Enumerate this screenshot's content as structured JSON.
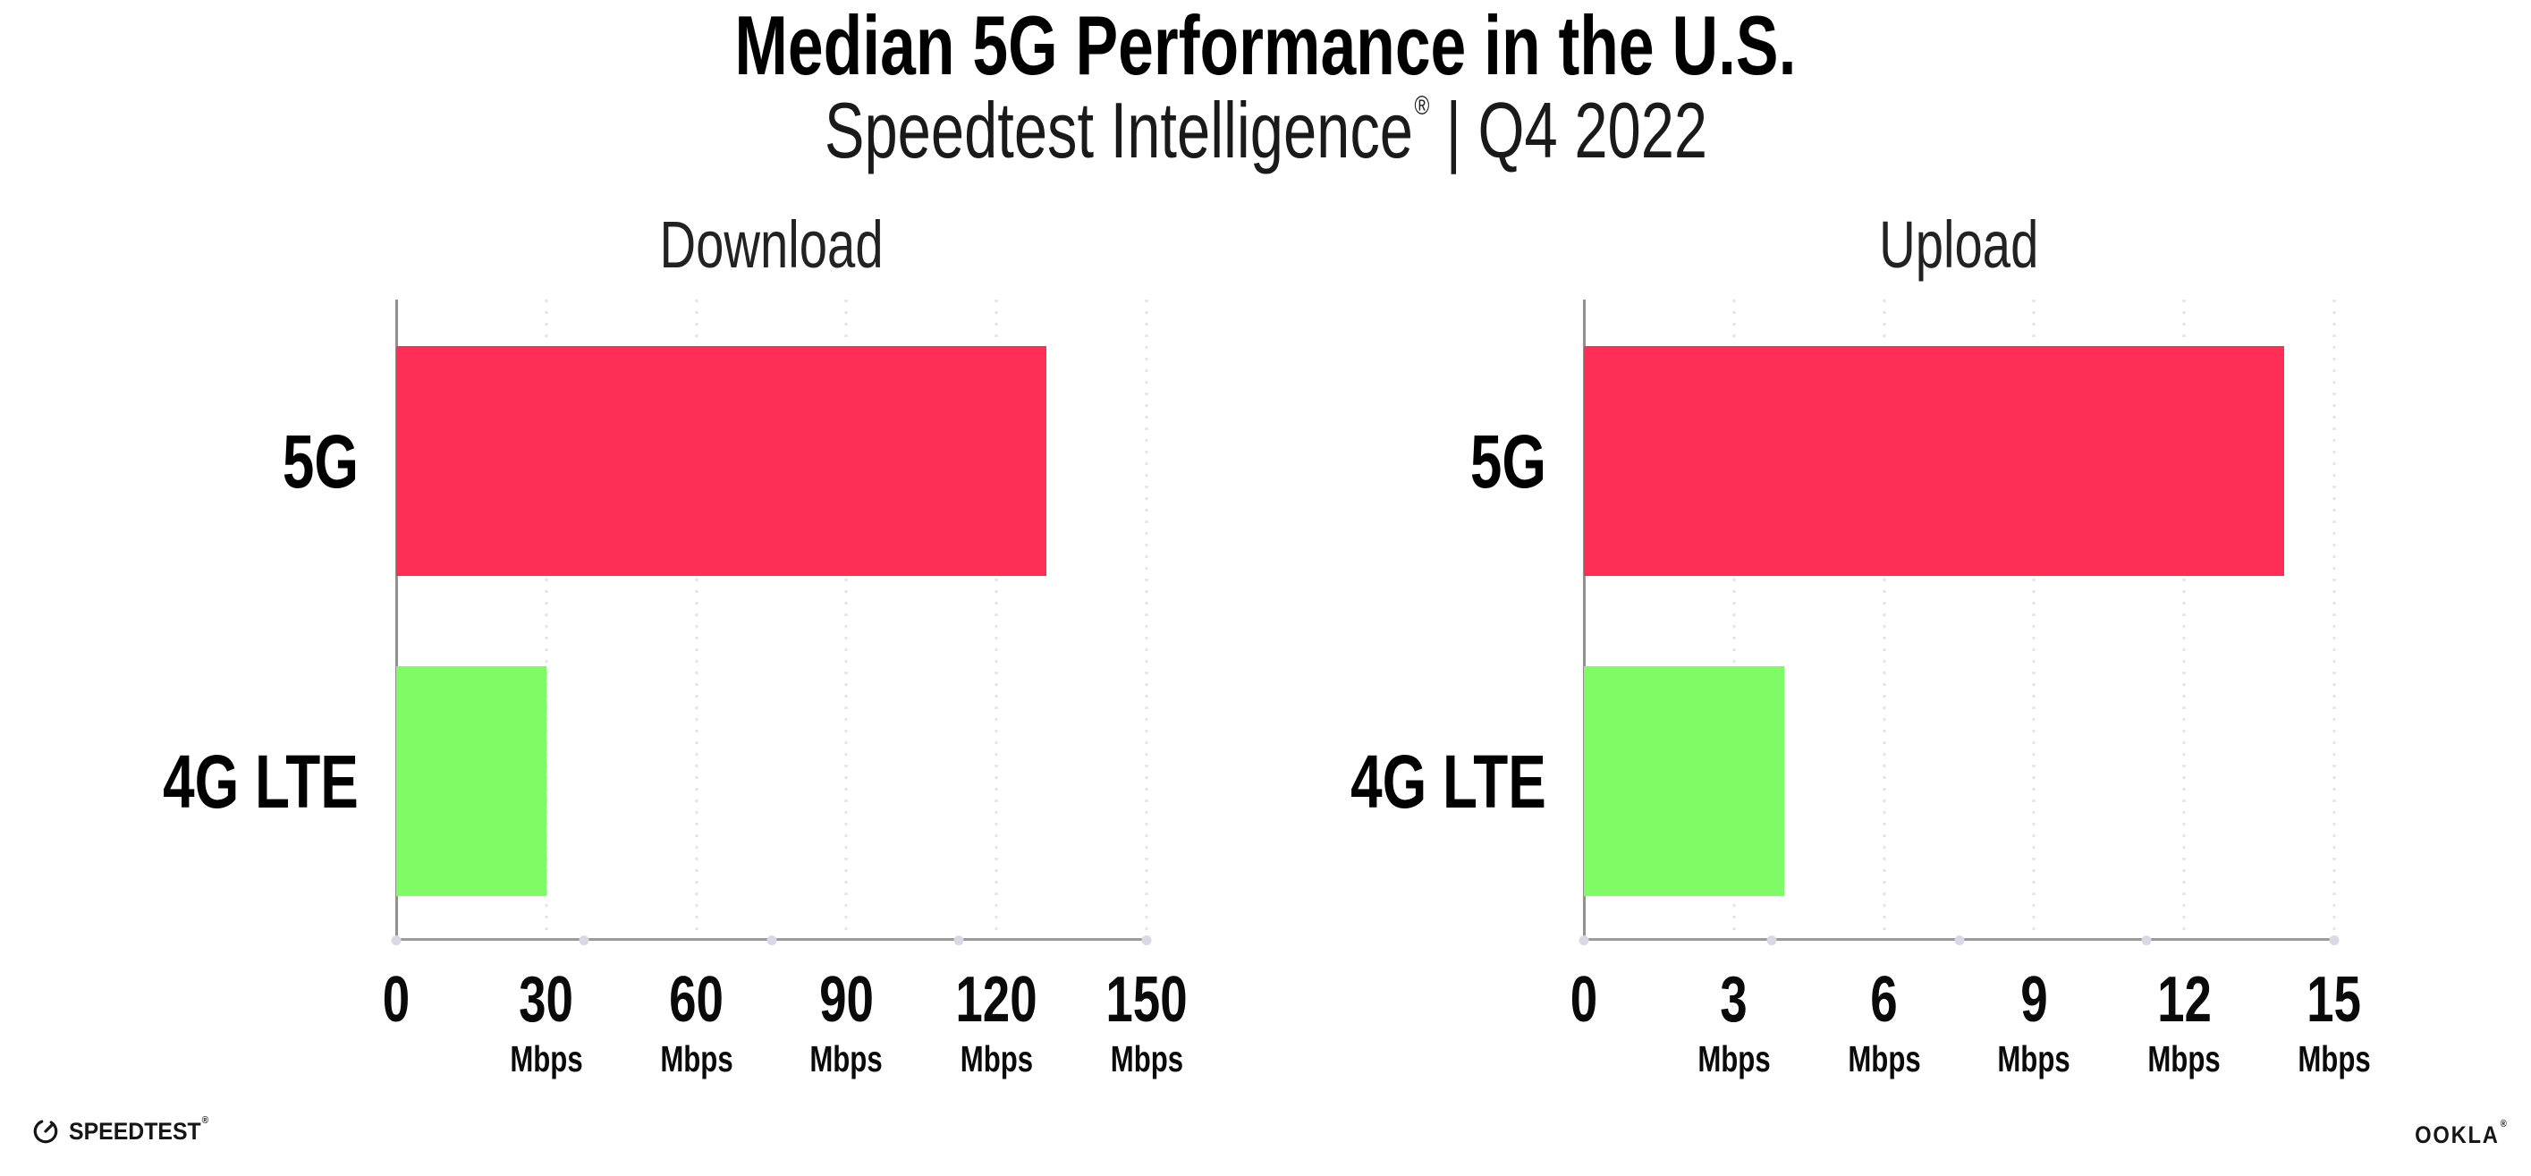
{
  "header": {
    "title": "Median 5G Performance in the U.S.",
    "subtitle_brand": "Speedtest Intelligence",
    "subtitle_mark": "®",
    "subtitle_period": "| Q4 2022"
  },
  "chart_data": [
    {
      "type": "bar",
      "orientation": "horizontal",
      "title": "Download",
      "categories": [
        "5G",
        "4G LTE"
      ],
      "values": [
        130,
        30
      ],
      "unit": "Mbps",
      "xlim": [
        0,
        150
      ],
      "ticks": [
        0,
        30,
        60,
        90,
        120,
        150
      ],
      "bar_colors": [
        "#fe2e56",
        "#80fa66"
      ],
      "grid": "dotted-vertical",
      "legend": "none"
    },
    {
      "type": "bar",
      "orientation": "horizontal",
      "title": "Upload",
      "categories": [
        "5G",
        "4G LTE"
      ],
      "values": [
        14,
        4
      ],
      "unit": "Mbps",
      "xlim": [
        0,
        15
      ],
      "ticks": [
        0,
        3,
        6,
        9,
        12,
        15
      ],
      "bar_colors": [
        "#fe2e56",
        "#80fa66"
      ],
      "grid": "dotted-vertical",
      "legend": "none"
    }
  ],
  "colors": {
    "bar_5g": "#fe2e56",
    "bar_4g_lte": "#80fa66",
    "axis": "#9a9a9a",
    "gridline": "#e3e3ee",
    "background": "#ffffff"
  },
  "footer": {
    "speedtest_logo": "SPEEDTEST",
    "speedtest_mark": "®",
    "ookla_logo": "OOKLA",
    "ookla_mark": "®"
  }
}
